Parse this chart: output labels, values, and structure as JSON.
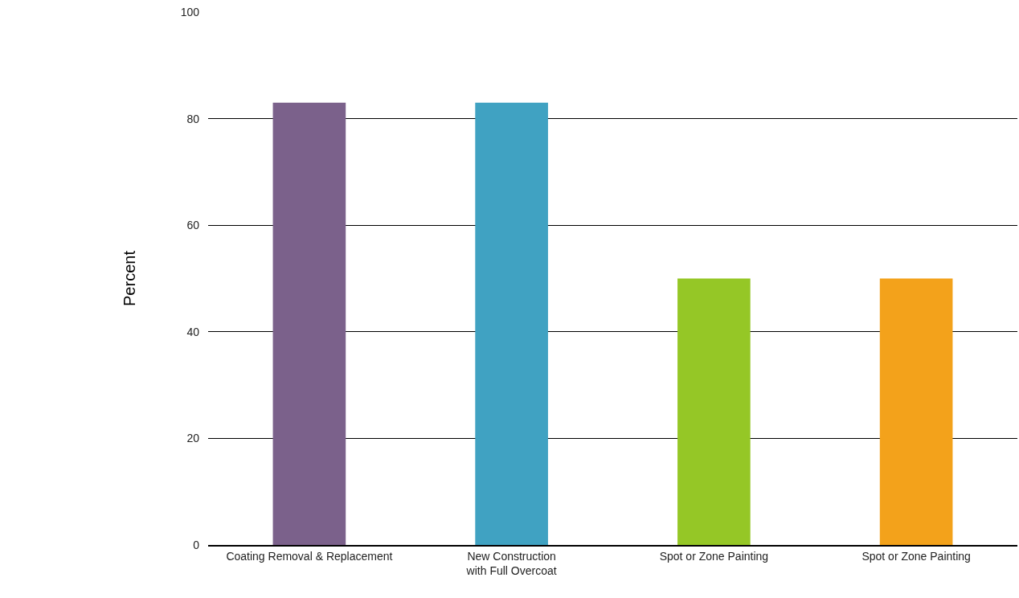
{
  "chart_data": {
    "type": "bar",
    "ylabel": "Percent",
    "categories": [
      "Coating Removal & Replacement",
      "New Construction\nwith Full Overcoat",
      "Spot or Zone Painting",
      "Spot or Zone Painting"
    ],
    "values": [
      83,
      83,
      50,
      50
    ],
    "colors": [
      "#7b618b",
      "#40a2c2",
      "#95c726",
      "#f3a21b"
    ],
    "ylim": [
      0,
      100
    ],
    "yticks": [
      0,
      20,
      40,
      60,
      80,
      100
    ],
    "grid": "y"
  }
}
